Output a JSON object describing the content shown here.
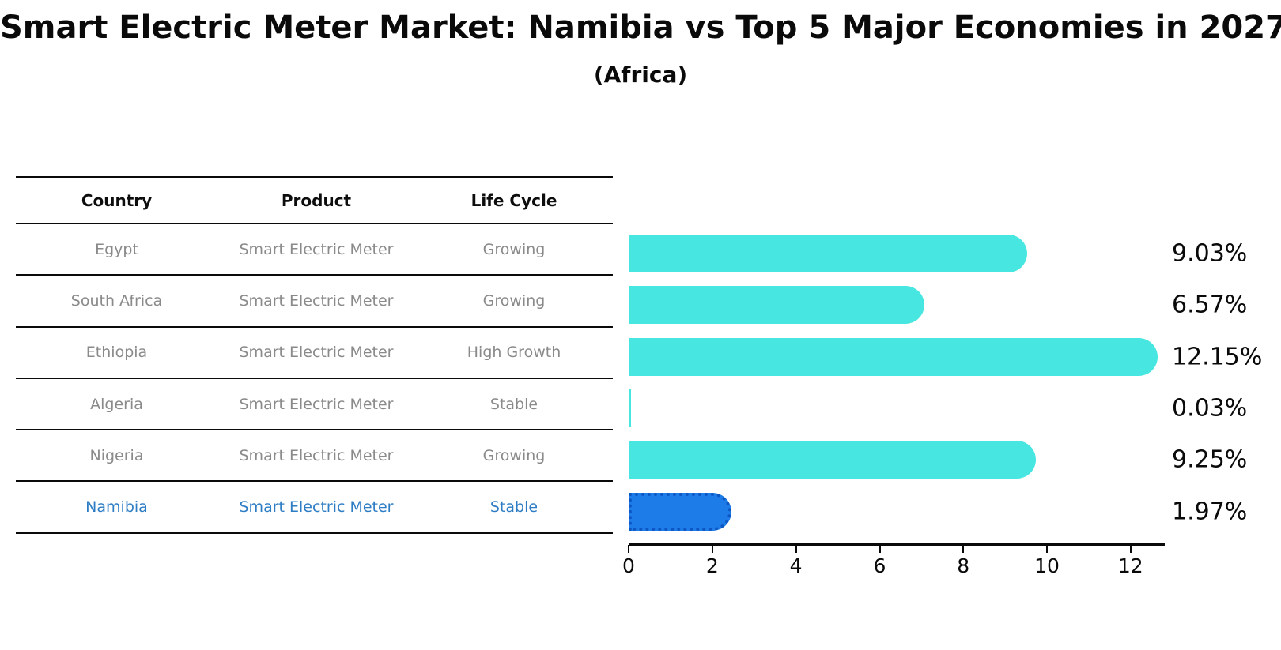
{
  "title": "Smart Electric Meter Market: Namibia vs Top 5 Major Economies in 2027",
  "subtitle": "(Africa)",
  "table": {
    "headers": [
      "Country",
      "Product",
      "Life Cycle"
    ],
    "rows": [
      {
        "country": "Egypt",
        "product": "Smart Electric Meter",
        "life_cycle": "Growing",
        "highlight": false
      },
      {
        "country": "South Africa",
        "product": "Smart Electric Meter",
        "life_cycle": "Growing",
        "highlight": false
      },
      {
        "country": "Ethiopia",
        "product": "Smart Electric Meter",
        "life_cycle": "High Growth",
        "highlight": false
      },
      {
        "country": "Algeria",
        "product": "Smart Electric Meter",
        "life_cycle": "Stable",
        "highlight": false
      },
      {
        "country": "Nigeria",
        "product": "Smart Electric Meter",
        "life_cycle": "Growing",
        "highlight": false
      },
      {
        "country": "Namibia",
        "product": "Smart Electric Meter",
        "life_cycle": "Stable",
        "highlight": true
      }
    ]
  },
  "chart_data": {
    "type": "bar",
    "orientation": "horizontal",
    "title": "Smart Electric Meter Market: Namibia vs Top 5 Major Economies in 2027",
    "subtitle": "(Africa)",
    "categories": [
      "Egypt",
      "South Africa",
      "Ethiopia",
      "Algeria",
      "Nigeria",
      "Namibia"
    ],
    "values": [
      9.03,
      6.57,
      12.15,
      0.03,
      9.25,
      1.97
    ],
    "value_labels": [
      "9.03%",
      "6.57%",
      "12.15%",
      "0.03%",
      "9.25%",
      "1.97%"
    ],
    "x_ticks": [
      0,
      2,
      4,
      6,
      8,
      10,
      12
    ],
    "xlim": [
      0,
      12.8
    ],
    "grid": false,
    "legend": "none",
    "highlight_index": 5,
    "bar_color": "#47e6e0",
    "highlight_color": "#1e7ce8",
    "highlight_border_color": "#0d57c4",
    "highlight_text_color": "#2e7dc4"
  }
}
